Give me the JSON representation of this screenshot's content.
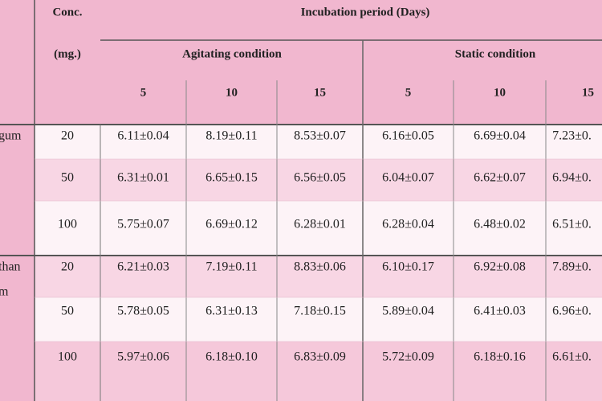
{
  "header": {
    "conc_label": [
      "Conc.",
      "(mg.)"
    ],
    "incubation": "Incubation period (Days)",
    "conditions": [
      "Agitating condition",
      "Static condition"
    ],
    "days": [
      "5",
      "10",
      "15",
      "5",
      "10",
      "15"
    ]
  },
  "table": {
    "groups": [
      {
        "label": [
          "gum"
        ],
        "rows": [
          {
            "conc": "20",
            "cells": [
              "6.11±0.04",
              "8.19±0.11",
              "8.53±0.07",
              "6.16±0.05",
              "6.69±0.04",
              "7.23±0."
            ]
          },
          {
            "conc": "50",
            "cells": [
              "6.31±0.01",
              "6.65±0.15",
              "6.56±0.05",
              "6.04±0.07",
              "6.62±0.07",
              "6.94±0."
            ]
          },
          {
            "conc": "100",
            "cells": [
              "5.75±0.07",
              "6.69±0.12",
              "6.28±0.01",
              "6.28±0.04",
              "6.48±0.02",
              "6.51±0."
            ]
          }
        ]
      },
      {
        "label": [
          "than",
          "m"
        ],
        "rows": [
          {
            "conc": "20",
            "cells": [
              "6.21±0.03",
              "7.19±0.11",
              "8.83±0.06",
              "6.10±0.17",
              "6.92±0.08",
              "7.89±0."
            ]
          },
          {
            "conc": "50",
            "cells": [
              "5.78±0.05",
              "6.31±0.13",
              "7.18±0.15",
              "5.89±0.04",
              "6.41±0.03",
              "6.96±0."
            ]
          },
          {
            "conc": "100",
            "cells": [
              "5.97±0.06",
              "6.18±0.10",
              "6.83±0.09",
              "5.72±0.09",
              "6.18±0.16",
              "6.61±0."
            ]
          }
        ]
      }
    ]
  }
}
